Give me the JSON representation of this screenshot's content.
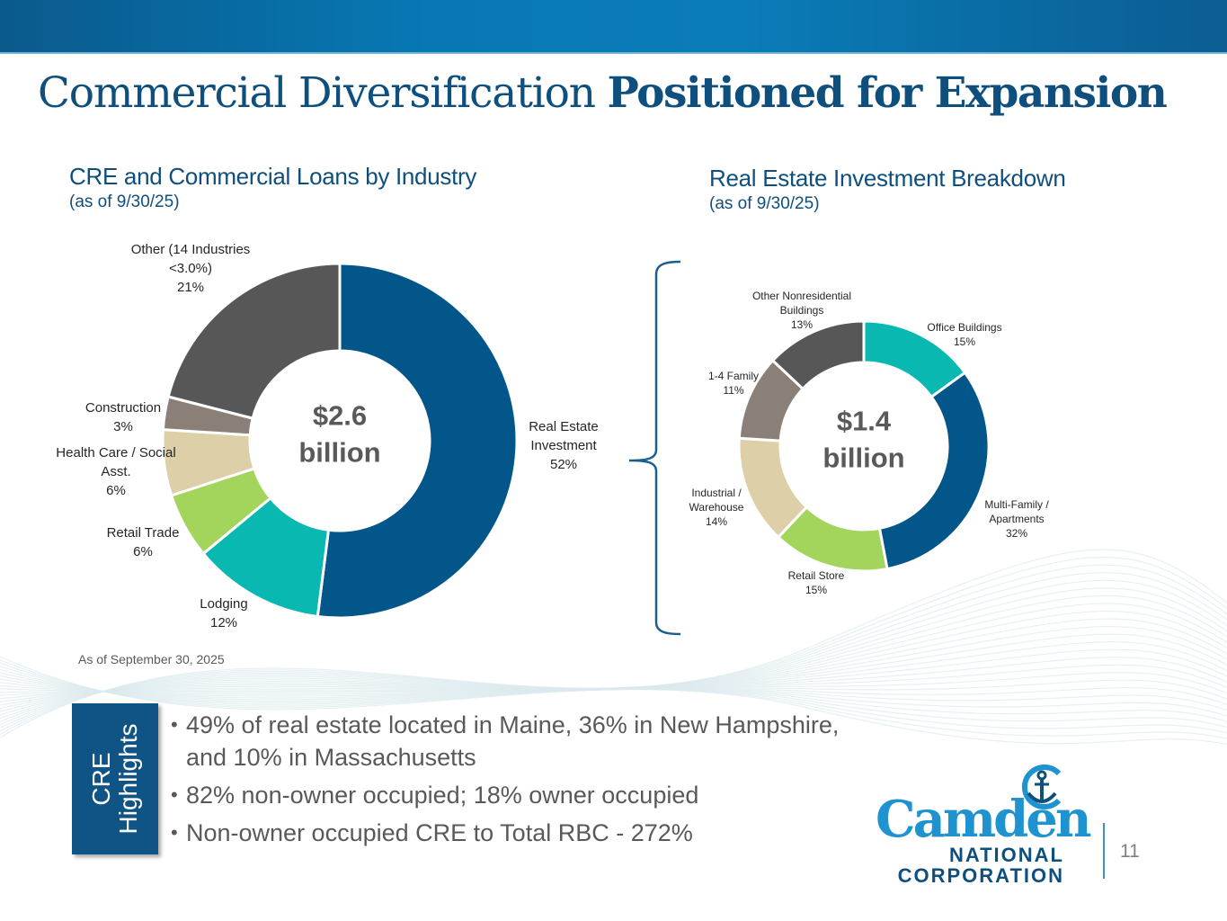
{
  "slide": {
    "title_light": "Commercial Diversification",
    "title_bold": "Positioned for Expansion",
    "page_number": "11",
    "footnote": "As of September 30, 2025"
  },
  "colors": {
    "brand_dark_blue": "#0f4f7e",
    "navy": "#02568a",
    "teal": "#09b8b0",
    "lime": "#a3d45c",
    "beige": "#ddd0a8",
    "taupe": "#8a8078",
    "dark_gray": "#575757",
    "logo_blue": "#1f93cf"
  },
  "chart_data": [
    {
      "type": "pie",
      "variant": "donut",
      "title": "CRE and Commercial Loans by Industry",
      "subtitle": "(as of 9/30/25)",
      "center_label": [
        "$2.6",
        "billion"
      ],
      "unit": "%",
      "start": "12 o'clock, clockwise",
      "slices": [
        {
          "label": [
            "Real Estate",
            "Investment"
          ],
          "value": 52,
          "value_label": "52%",
          "color": "#02568a"
        },
        {
          "label": [
            "Lodging"
          ],
          "value": 12,
          "value_label": "12%",
          "color": "#09b8b0"
        },
        {
          "label": [
            "Retail Trade"
          ],
          "value": 6,
          "value_label": "6%",
          "color": "#a3d45c"
        },
        {
          "label": [
            "Health Care / Social",
            "Asst."
          ],
          "value": 6,
          "value_label": "6%",
          "color": "#ddd0a8"
        },
        {
          "label": [
            "Construction"
          ],
          "value": 3,
          "value_label": "3%",
          "color": "#8a8078"
        },
        {
          "label": [
            "Other (14 Industries",
            "<3.0%)"
          ],
          "value": 21,
          "value_label": "21%",
          "color": "#575757"
        }
      ]
    },
    {
      "type": "pie",
      "variant": "donut",
      "title": "Real Estate Investment Breakdown",
      "subtitle": "(as of 9/30/25)",
      "center_label": [
        "$1.4",
        "billion"
      ],
      "unit": "%",
      "start": "12 o'clock, clockwise",
      "slices": [
        {
          "label": [
            "Office Buildings"
          ],
          "value": 15,
          "value_label": "15%",
          "color": "#09b8b0"
        },
        {
          "label": [
            "Multi-Family /",
            "Apartments"
          ],
          "value": 32,
          "value_label": "32%",
          "color": "#02568a"
        },
        {
          "label": [
            "Retail Store"
          ],
          "value": 15,
          "value_label": "15%",
          "color": "#a3d45c"
        },
        {
          "label": [
            "Industrial /",
            "Warehouse"
          ],
          "value": 14,
          "value_label": "14%",
          "color": "#ddd0a8"
        },
        {
          "label": [
            "1-4 Family"
          ],
          "value": 11,
          "value_label": "11%",
          "color": "#8a8078"
        },
        {
          "label": [
            "Other Nonresidential",
            "Buildings"
          ],
          "value": 13,
          "value_label": "13%",
          "color": "#575757"
        }
      ]
    }
  ],
  "highlights": {
    "box_label": [
      "CRE",
      "Highlights"
    ],
    "bullets": [
      [
        "49% of real estate located in Maine, 36% in New Hampshire,",
        "and 10% in Massachusetts"
      ],
      [
        "82% non-owner occupied; 18% owner occupied"
      ],
      [
        "Non-owner occupied CRE to Total RBC - 272%"
      ]
    ]
  },
  "logo": {
    "word": "Camden",
    "line1": "NATIONAL",
    "line2": "CORPORATION"
  }
}
